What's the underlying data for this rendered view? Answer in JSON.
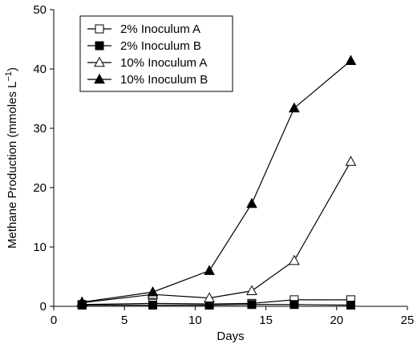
{
  "chart_data": {
    "type": "line",
    "title": "",
    "xlabel": "Days",
    "ylabel": "Methane Production (mmoles L",
    "ylabel_sup": "−1",
    "ylabel_close": ")",
    "xlim": [
      0,
      25
    ],
    "ylim": [
      0,
      50
    ],
    "xticks": [
      0,
      5,
      10,
      15,
      20,
      25
    ],
    "yticks": [
      0,
      10,
      20,
      30,
      40,
      50
    ],
    "grid": false,
    "legend_position": "top-left",
    "series": [
      {
        "name": "2% Inoculum A",
        "marker": "square",
        "filled": false,
        "x": [
          2,
          7,
          11,
          14,
          17,
          21
        ],
        "y": [
          0.3,
          0.5,
          0.4,
          0.5,
          1.1,
          1.1
        ]
      },
      {
        "name": "2% Inoculum B",
        "marker": "square",
        "filled": true,
        "x": [
          2,
          7,
          11,
          14,
          17,
          21
        ],
        "y": [
          0.2,
          0.2,
          0.2,
          0.3,
          0.3,
          0.2
        ]
      },
      {
        "name": "10% Inoculum A",
        "marker": "triangle",
        "filled": false,
        "x": [
          2,
          7,
          11,
          14,
          17,
          21
        ],
        "y": [
          0.6,
          2.0,
          1.4,
          2.6,
          7.7,
          24.4
        ]
      },
      {
        "name": "10% Inoculum B",
        "marker": "triangle",
        "filled": true,
        "x": [
          2,
          7,
          11,
          14,
          17,
          21
        ],
        "y": [
          0.7,
          2.4,
          6.0,
          17.3,
          33.4,
          41.4
        ]
      }
    ]
  }
}
